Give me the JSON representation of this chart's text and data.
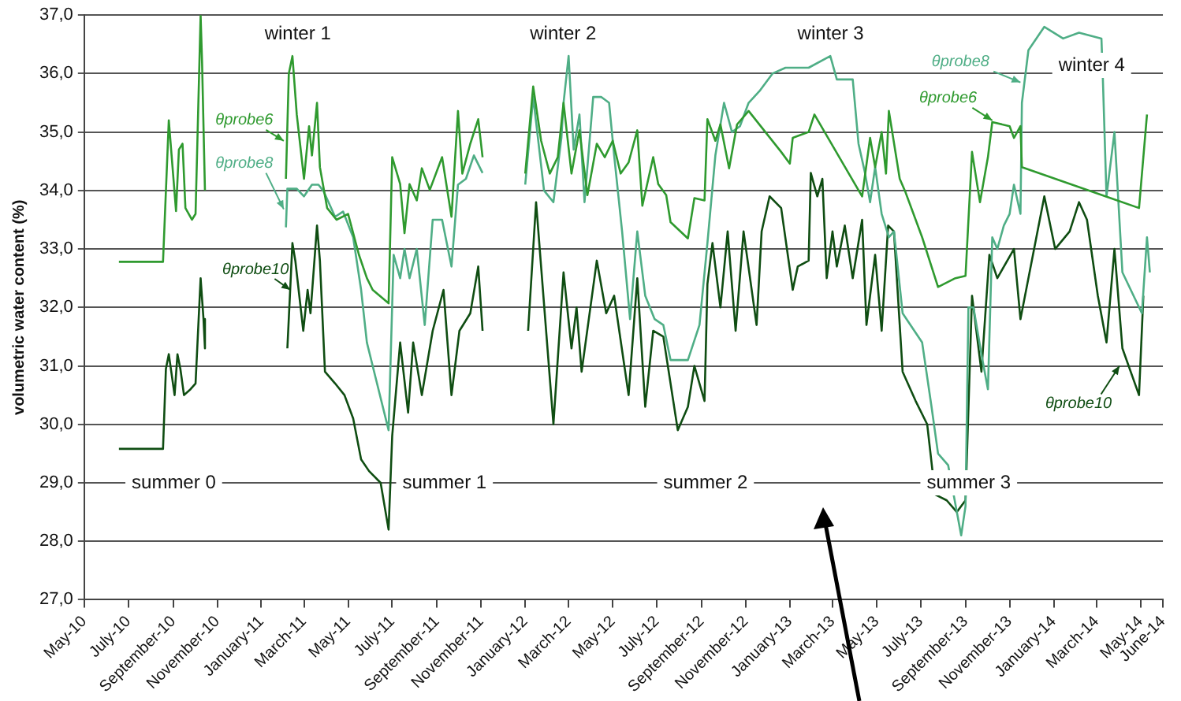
{
  "chart_data": {
    "type": "line",
    "ylabel": "volumetric water content (%)",
    "xlim": [
      "2010-05-01",
      "2014-06-01"
    ],
    "xticks": [
      {
        "value": "2010-05-01",
        "label": "May-10"
      },
      {
        "value": "2010-07-01",
        "label": "July-10"
      },
      {
        "value": "2010-09-01",
        "label": "September-10"
      },
      {
        "value": "2010-11-01",
        "label": "November-10"
      },
      {
        "value": "2011-01-01",
        "label": "January-11"
      },
      {
        "value": "2011-03-01",
        "label": "March-11"
      },
      {
        "value": "2011-05-01",
        "label": "May-11"
      },
      {
        "value": "2011-07-01",
        "label": "July-11"
      },
      {
        "value": "2011-09-01",
        "label": "September-11"
      },
      {
        "value": "2011-11-01",
        "label": "November-11"
      },
      {
        "value": "2012-01-01",
        "label": "January-12"
      },
      {
        "value": "2012-03-01",
        "label": "March-12"
      },
      {
        "value": "2012-05-01",
        "label": "May-12"
      },
      {
        "value": "2012-07-01",
        "label": "July-12"
      },
      {
        "value": "2012-09-01",
        "label": "September-12"
      },
      {
        "value": "2012-11-01",
        "label": "November-12"
      },
      {
        "value": "2013-01-01",
        "label": "January-13"
      },
      {
        "value": "2013-03-01",
        "label": "March-13"
      },
      {
        "value": "2013-05-01",
        "label": "May-13"
      },
      {
        "value": "2013-07-01",
        "label": "July-13"
      },
      {
        "value": "2013-09-01",
        "label": "September-13"
      },
      {
        "value": "2013-11-01",
        "label": "November-13"
      },
      {
        "value": "2014-01-01",
        "label": "January-14"
      },
      {
        "value": "2014-03-01",
        "label": "March-14"
      },
      {
        "value": "2014-05-01",
        "label": "May-14"
      },
      {
        "value": "2014-06-01",
        "label": "June-14"
      }
    ],
    "ylim": [
      27,
      37
    ],
    "yticks": [
      {
        "value": 27,
        "label": "27,0"
      },
      {
        "value": 28,
        "label": "28,0"
      },
      {
        "value": 29,
        "label": "29,0"
      },
      {
        "value": 30,
        "label": "30,0"
      },
      {
        "value": 31,
        "label": "31,0"
      },
      {
        "value": 32,
        "label": "32,0"
      },
      {
        "value": 33,
        "label": "33,0"
      },
      {
        "value": 34,
        "label": "34,0"
      },
      {
        "value": 35,
        "label": "35,0"
      },
      {
        "value": 36,
        "label": "36,0"
      },
      {
        "value": 37,
        "label": "37,0"
      }
    ],
    "grid": "y",
    "legend": false,
    "marker": "none",
    "line_style": "solid",
    "series": [
      {
        "color": "#2f9a2f",
        "x": [
          "2010-06-18",
          "2010-08-18",
          "2010-08-26",
          "2010-09-05",
          "2010-09-09",
          "2010-09-14",
          "2010-09-18",
          "2010-09-27",
          "2010-10-02",
          "2010-10-09",
          "2010-10-11",
          "2010-10-15",
          "2010-12-15",
          "2011-02-04",
          "2011-02-08",
          "2011-02-13",
          "2011-02-19",
          "2011-03-01",
          "2011-03-08",
          "2011-03-12",
          "2011-03-19",
          "2011-03-23",
          "2011-04-02",
          "2011-04-15",
          "2011-05-01",
          "2011-05-16",
          "2011-05-27",
          "2011-06-04",
          "2011-06-26",
          "2011-07-01",
          "2011-07-12",
          "2011-07-18",
          "2011-07-25",
          "2011-08-04",
          "2011-08-11",
          "2011-08-22",
          "2011-09-08",
          "2011-09-21",
          "2011-09-30",
          "2011-10-06",
          "2011-10-17",
          "2011-10-28",
          "2011-11-03",
          "2011-12-01",
          "2012-01-01",
          "2012-01-12",
          "2012-01-23",
          "2012-02-04",
          "2012-02-15",
          "2012-02-23",
          "2012-03-05",
          "2012-03-16",
          "2012-03-27",
          "2012-04-09",
          "2012-04-20",
          "2012-05-01",
          "2012-05-12",
          "2012-05-23",
          "2012-06-04",
          "2012-06-11",
          "2012-06-26",
          "2012-07-03",
          "2012-07-14",
          "2012-07-20",
          "2012-08-13",
          "2012-08-22",
          "2012-09-05",
          "2012-09-09",
          "2012-09-20",
          "2012-09-27",
          "2012-10-09",
          "2012-10-20",
          "2012-11-05",
          "2012-12-20",
          "2013-01-01",
          "2013-01-05",
          "2013-01-27",
          "2013-02-04",
          "2013-04-11",
          "2013-04-22",
          "2013-04-29",
          "2013-05-08",
          "2013-05-14",
          "2013-05-18",
          "2013-06-02",
          "2013-06-10",
          "2013-07-03",
          "2013-07-25",
          "2013-08-18",
          "2013-09-01",
          "2013-09-10",
          "2013-09-21",
          "2013-10-02",
          "2013-10-08",
          "2013-11-01",
          "2013-11-07",
          "2013-11-16",
          "2013-11-18",
          "2014-04-29",
          "2014-05-10"
        ],
        "values": [
          32.78,
          32.78,
          35.2,
          33.65,
          34.7,
          34.8,
          33.7,
          33.5,
          33.6,
          37.0,
          36.2,
          34.0,
          null,
          34.2,
          36.0,
          36.3,
          35.3,
          34.2,
          35.1,
          34.6,
          35.5,
          34.4,
          33.7,
          33.5,
          33.6,
          32.9,
          32.5,
          32.3,
          32.07,
          34.57,
          34.11,
          33.27,
          34.11,
          33.83,
          34.38,
          34.01,
          34.57,
          33.55,
          35.36,
          34.29,
          34.8,
          35.22,
          34.57,
          null,
          34.29,
          35.78,
          34.85,
          34.29,
          34.57,
          35.5,
          34.29,
          35.03,
          33.92,
          34.8,
          34.57,
          34.85,
          34.29,
          34.48,
          35.03,
          33.74,
          34.57,
          34.11,
          33.92,
          33.46,
          33.18,
          33.87,
          33.83,
          35.22,
          34.85,
          35.13,
          34.38,
          35.13,
          35.36,
          34.66,
          34.46,
          34.9,
          35.0,
          35.3,
          33.9,
          34.9,
          34.4,
          35.0,
          34.29,
          35.36,
          34.2,
          33.97,
          33.2,
          32.35,
          32.5,
          32.54,
          34.66,
          33.8,
          34.57,
          35.17,
          35.1,
          34.9,
          35.1,
          34.4,
          33.7,
          35.3
        ]
      },
      {
        "color": "#4fae86",
        "x": [
          "2011-02-04",
          "2011-02-06",
          "2011-02-19",
          "2011-03-01",
          "2011-03-12",
          "2011-03-21",
          "2011-03-28",
          "2011-04-13",
          "2011-04-24",
          "2011-05-08",
          "2011-05-19",
          "2011-05-27",
          "2011-06-10",
          "2011-06-26",
          "2011-07-03",
          "2011-07-12",
          "2011-07-18",
          "2011-07-25",
          "2011-08-04",
          "2011-08-15",
          "2011-08-26",
          "2011-09-08",
          "2011-09-21",
          "2011-09-30",
          "2011-10-11",
          "2011-10-22",
          "2011-11-03",
          "2011-12-01",
          "2012-01-01",
          "2012-01-12",
          "2012-01-27",
          "2012-02-09",
          "2012-02-20",
          "2012-02-23",
          "2012-03-01",
          "2012-03-08",
          "2012-03-16",
          "2012-03-23",
          "2012-04-04",
          "2012-04-15",
          "2012-04-26",
          "2012-05-03",
          "2012-05-14",
          "2012-05-25",
          "2012-06-04",
          "2012-06-15",
          "2012-06-28",
          "2012-07-10",
          "2012-07-20",
          "2012-08-13",
          "2012-08-29",
          "2012-09-09",
          "2012-09-20",
          "2012-10-02",
          "2012-10-13",
          "2012-10-24",
          "2012-11-05",
          "2012-11-20",
          "2012-12-08",
          "2012-12-26",
          "2013-01-27",
          "2013-02-26",
          "2013-03-07",
          "2013-03-29",
          "2013-04-06",
          "2013-04-15",
          "2013-04-22",
          "2013-04-29",
          "2013-05-08",
          "2013-05-18",
          "2013-05-25",
          "2013-06-06",
          "2013-07-03",
          "2013-07-16",
          "2013-07-25",
          "2013-08-08",
          "2013-08-20",
          "2013-08-26",
          "2013-09-01",
          "2013-09-05",
          "2013-09-12",
          "2013-09-23",
          "2013-10-02",
          "2013-10-08",
          "2013-10-15",
          "2013-10-24",
          "2013-11-01",
          "2013-11-07",
          "2013-11-16",
          "2013-11-18",
          "2013-11-27",
          "2013-12-19",
          "2014-01-14",
          "2014-02-05",
          "2014-03-08",
          "2014-03-10",
          "2014-03-15",
          "2014-03-26",
          "2014-04-06",
          "2014-05-03",
          "2014-05-10",
          "2014-05-14"
        ],
        "values": [
          33.37,
          34.03,
          34.03,
          33.9,
          34.1,
          34.1,
          33.99,
          33.55,
          33.64,
          33.2,
          32.3,
          31.4,
          30.7,
          29.9,
          32.9,
          32.5,
          33.0,
          32.5,
          33.0,
          31.7,
          33.5,
          33.5,
          32.7,
          34.1,
          34.2,
          34.6,
          34.3,
          null,
          34.1,
          35.6,
          34.0,
          33.8,
          34.9,
          35.5,
          36.3,
          34.7,
          35.3,
          33.8,
          35.6,
          35.6,
          35.5,
          34.6,
          33.3,
          31.8,
          33.3,
          32.2,
          31.8,
          31.7,
          31.1,
          31.1,
          31.7,
          33.1,
          34.6,
          35.5,
          35.0,
          35.1,
          35.5,
          35.7,
          36.0,
          36.1,
          36.1,
          36.3,
          35.9,
          35.9,
          34.8,
          34.3,
          33.8,
          34.4,
          33.6,
          33.2,
          33.3,
          31.9,
          31.4,
          30.3,
          29.5,
          29.3,
          28.5,
          28.1,
          28.6,
          32.0,
          32.0,
          31.2,
          30.6,
          33.2,
          33.0,
          33.4,
          33.6,
          34.1,
          33.6,
          35.5,
          36.4,
          36.8,
          36.6,
          36.7,
          36.6,
          35.9,
          33.9,
          35.0,
          32.6,
          31.9,
          33.2,
          32.6
        ]
      },
      {
        "color": "#0f4d12",
        "x": [
          "2010-06-18",
          "2010-08-18",
          "2010-08-22",
          "2010-08-26",
          "2010-09-03",
          "2010-09-07",
          "2010-09-11",
          "2010-09-16",
          "2010-09-25",
          "2010-10-02",
          "2010-10-09",
          "2010-10-13",
          "2010-10-15",
          "2010-12-15",
          "2011-02-06",
          "2011-02-13",
          "2011-02-17",
          "2011-02-28",
          "2011-03-06",
          "2011-03-10",
          "2011-03-19",
          "2011-03-23",
          "2011-03-30",
          "2011-04-13",
          "2011-04-26",
          "2011-05-08",
          "2011-05-19",
          "2011-05-30",
          "2011-06-15",
          "2011-06-26",
          "2011-07-01",
          "2011-07-12",
          "2011-07-23",
          "2011-07-30",
          "2011-08-11",
          "2011-08-26",
          "2011-09-10",
          "2011-09-21",
          "2011-10-02",
          "2011-10-17",
          "2011-10-28",
          "2011-11-03",
          "2011-12-01",
          "2012-01-05",
          "2012-01-16",
          "2012-02-09",
          "2012-02-23",
          "2012-03-05",
          "2012-03-12",
          "2012-03-19",
          "2012-04-09",
          "2012-04-22",
          "2012-05-03",
          "2012-05-23",
          "2012-06-04",
          "2012-06-15",
          "2012-06-26",
          "2012-07-10",
          "2012-07-30",
          "2012-08-13",
          "2012-08-22",
          "2012-09-05",
          "2012-09-09",
          "2012-09-16",
          "2012-09-27",
          "2012-10-07",
          "2012-10-18",
          "2012-10-29",
          "2012-11-16",
          "2012-11-23",
          "2012-12-04",
          "2012-12-20",
          "2013-01-05",
          "2013-01-12",
          "2013-01-27",
          "2013-01-30",
          "2013-02-08",
          "2013-02-15",
          "2013-02-21",
          "2013-03-01",
          "2013-03-07",
          "2013-03-18",
          "2013-03-29",
          "2013-04-11",
          "2013-04-17",
          "2013-04-29",
          "2013-05-08",
          "2013-05-17",
          "2013-05-25",
          "2013-06-06",
          "2013-06-24",
          "2013-07-10",
          "2013-07-21",
          "2013-08-06",
          "2013-08-20",
          "2013-09-01",
          "2013-09-10",
          "2013-09-23",
          "2013-10-04",
          "2013-10-15",
          "2013-11-07",
          "2013-11-16",
          "2013-12-08",
          "2013-12-19",
          "2014-01-03",
          "2014-01-23",
          "2014-02-05",
          "2014-02-16",
          "2014-03-03",
          "2014-03-15",
          "2014-03-26",
          "2014-04-06",
          "2014-04-29",
          "2014-05-05"
        ],
        "values": [
          29.58,
          29.58,
          30.95,
          31.2,
          30.5,
          31.2,
          30.95,
          30.5,
          30.6,
          30.7,
          32.5,
          31.8,
          31.3,
          null,
          31.3,
          33.1,
          32.8,
          31.6,
          32.3,
          31.9,
          33.4,
          32.8,
          30.9,
          30.7,
          30.5,
          30.1,
          29.4,
          29.2,
          29.0,
          28.2,
          29.8,
          31.4,
          30.2,
          31.4,
          30.5,
          31.6,
          32.3,
          30.5,
          31.6,
          31.9,
          32.7,
          31.6,
          null,
          31.6,
          33.8,
          30.0,
          32.6,
          31.3,
          32.0,
          30.9,
          32.8,
          31.9,
          32.2,
          30.5,
          32.5,
          30.3,
          31.6,
          31.5,
          29.9,
          30.3,
          31.0,
          30.4,
          32.4,
          33.1,
          32.0,
          33.3,
          31.6,
          33.3,
          31.7,
          33.3,
          33.9,
          33.7,
          32.3,
          32.7,
          32.8,
          34.3,
          33.9,
          34.2,
          32.5,
          33.3,
          32.7,
          33.4,
          32.5,
          33.5,
          31.7,
          32.9,
          31.6,
          33.4,
          33.3,
          30.9,
          30.4,
          30.0,
          28.8,
          28.7,
          28.5,
          28.7,
          32.2,
          30.9,
          32.9,
          32.5,
          33.0,
          31.8,
          33.2,
          33.9,
          33.0,
          33.3,
          33.8,
          33.5,
          32.2,
          31.4,
          33.0,
          31.3,
          30.5,
          32.2
        ]
      }
    ],
    "annotations": [
      "winter 1",
      "winter 2",
      "winter 3",
      "winter 4",
      "summer 0",
      "summer 1",
      "summer 2",
      "summer 3",
      {
        "text": "θprobe6",
        "x": "2011-02-01",
        "y": 34.85
      },
      {
        "text": "θprobe8",
        "x": "2011-02-01",
        "y": 33.68
      },
      {
        "text": "θprobe10",
        "x": "2011-02-10",
        "y": 32.3
      },
      {
        "text": "θprobe8",
        "x": "2013-11-16",
        "y": 35.85
      },
      {
        "text": "θprobe6",
        "x": "2013-10-08",
        "y": 35.2
      },
      {
        "text": "θprobe10",
        "x": "2014-04-02",
        "y": 31.0
      }
    ]
  }
}
